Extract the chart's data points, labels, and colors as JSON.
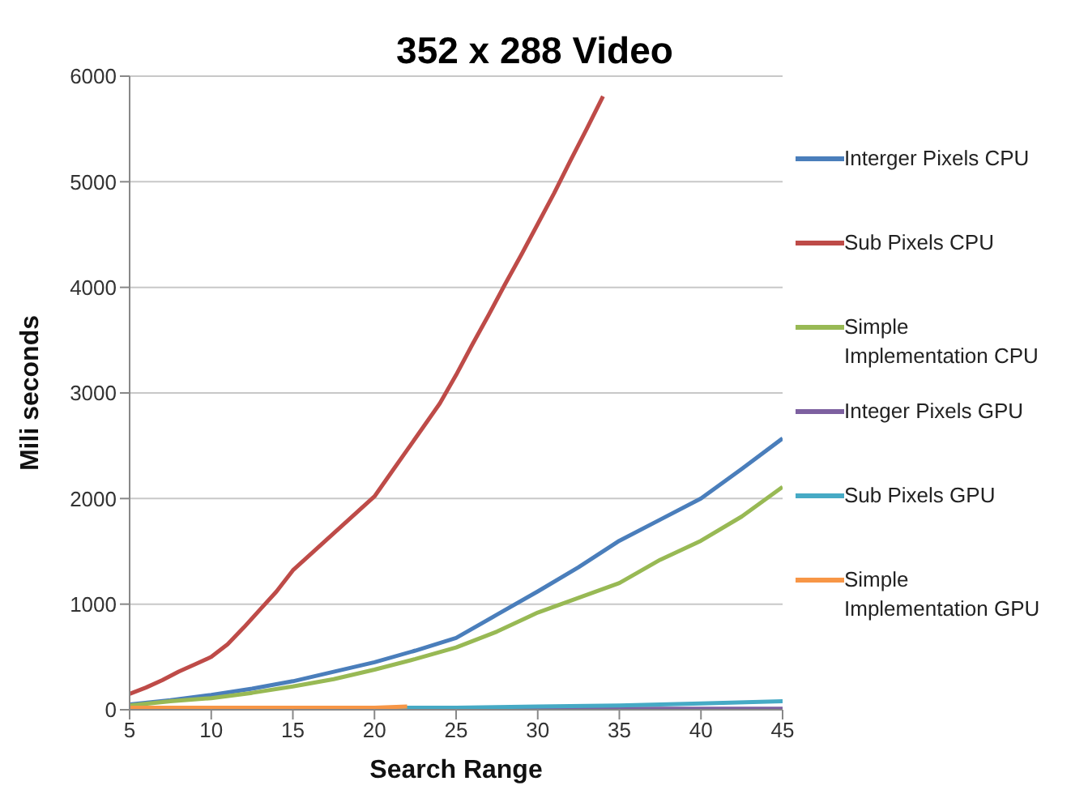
{
  "chart_data": {
    "type": "line",
    "title": "352 x 288 Video",
    "xlabel": "Search Range",
    "ylabel": "Mili seconds",
    "xlim": [
      5,
      45
    ],
    "xticks": [
      5,
      10,
      15,
      20,
      25,
      30,
      35,
      40,
      45
    ],
    "ylim": [
      0,
      6000
    ],
    "yticks": [
      0,
      1000,
      2000,
      3000,
      4000,
      5000,
      6000
    ],
    "grid": "y",
    "legend": "right",
    "marker": "none",
    "line_style": "solid",
    "series": [
      {
        "name": "Interger Pixels CPU",
        "color": "#4a7ebb",
        "x": [
          5,
          7.5,
          10,
          12.5,
          15,
          17.5,
          20,
          22.5,
          25,
          27.5,
          30,
          32.5,
          35,
          37.5,
          40,
          42.5,
          45
        ],
        "values": [
          50,
          90,
          140,
          200,
          270,
          360,
          450,
          560,
          680,
          900,
          1120,
          1350,
          1600,
          1800,
          2000,
          2280,
          2570
        ]
      },
      {
        "name": "Sub Pixels CPU",
        "color": "#be4b48",
        "x": [
          5,
          6,
          7,
          8,
          9,
          10,
          11,
          12,
          13,
          14,
          15,
          16,
          17,
          18,
          19,
          20,
          21,
          22,
          23,
          24,
          25,
          26,
          27,
          28,
          29,
          30,
          31,
          32,
          33,
          34
        ],
        "values": [
          150,
          210,
          280,
          360,
          430,
          500,
          620,
          780,
          950,
          1120,
          1320,
          1460,
          1600,
          1740,
          1880,
          2020,
          2240,
          2460,
          2680,
          2900,
          3170,
          3460,
          3740,
          4030,
          4310,
          4600,
          4890,
          5200,
          5500,
          5810
        ]
      },
      {
        "name": "Simple Implementation CPU",
        "color": "#98b954",
        "x": [
          5,
          7.5,
          10,
          12.5,
          15,
          17.5,
          20,
          22.5,
          25,
          27.5,
          30,
          32.5,
          35,
          37.5,
          40,
          42.5,
          45
        ],
        "values": [
          40,
          80,
          110,
          160,
          220,
          290,
          380,
          480,
          590,
          740,
          920,
          1060,
          1200,
          1420,
          1600,
          1830,
          2110
        ]
      },
      {
        "name": "Integer Pixels GPU",
        "color": "#7d60a0",
        "x": [
          5,
          15,
          25,
          35,
          45
        ],
        "values": [
          0,
          0,
          10,
          10,
          10
        ]
      },
      {
        "name": "Sub Pixels GPU",
        "color": "#46aac5",
        "x": [
          5,
          15,
          22,
          25,
          30,
          35,
          40,
          45
        ],
        "values": [
          10,
          10,
          20,
          20,
          30,
          40,
          60,
          80
        ]
      },
      {
        "name": "Simple Implementation GPU",
        "color": "#f79646",
        "x": [
          5,
          10,
          15,
          20,
          22
        ],
        "values": [
          20,
          20,
          20,
          20,
          30
        ]
      }
    ]
  }
}
